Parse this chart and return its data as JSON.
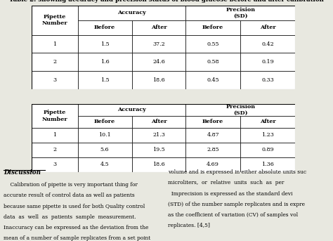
{
  "title": "Table 2: showing accuracy and precision status of blood glucose before and after calibration",
  "table1": {
    "rows": [
      [
        "1",
        "1.5",
        "37.2",
        "0.55",
        "0.42"
      ],
      [
        "2",
        "1.6",
        "24.6",
        "0.58",
        "0.19"
      ],
      [
        "3",
        "1.5",
        "18.6",
        "0.45",
        "0.33"
      ]
    ]
  },
  "table2": {
    "rows": [
      [
        "1",
        "10.1",
        "21.3",
        "4.87",
        "1.23"
      ],
      [
        "2",
        "5.6",
        "19.5",
        "2.85",
        "0.89"
      ],
      [
        "3",
        "4.5",
        "18.6",
        "4.69",
        "1.36"
      ]
    ]
  },
  "discussion_title": "Discussion",
  "discussion_left_lines": [
    "    Calibration of pipette is very important thing for",
    "accurate result of control data as well as patients",
    "because same pipette is used for both Quality control",
    "data  as  well  as  patients  sample  measurement.",
    "Inaccuracy can be expressed as the deviation from the",
    "mean of a number of sample replicates from a set point"
  ],
  "discussion_right_lines": [
    "volume and is expressed in either absolute units suc",
    "microliters,  or  relative  units  such  as  per",
    "  Imprecision is expressed as the standard devi",
    "(STD) of the number sample replicates and is expre",
    "as the coefficient of variation (CV) of samples vol",
    "replicates. [4,5]"
  ],
  "bg_color": "#e8e8e0",
  "table_bg": "#ffffff",
  "lw": 0.5,
  "font_size": 5.8,
  "title_font_size": 6.2
}
